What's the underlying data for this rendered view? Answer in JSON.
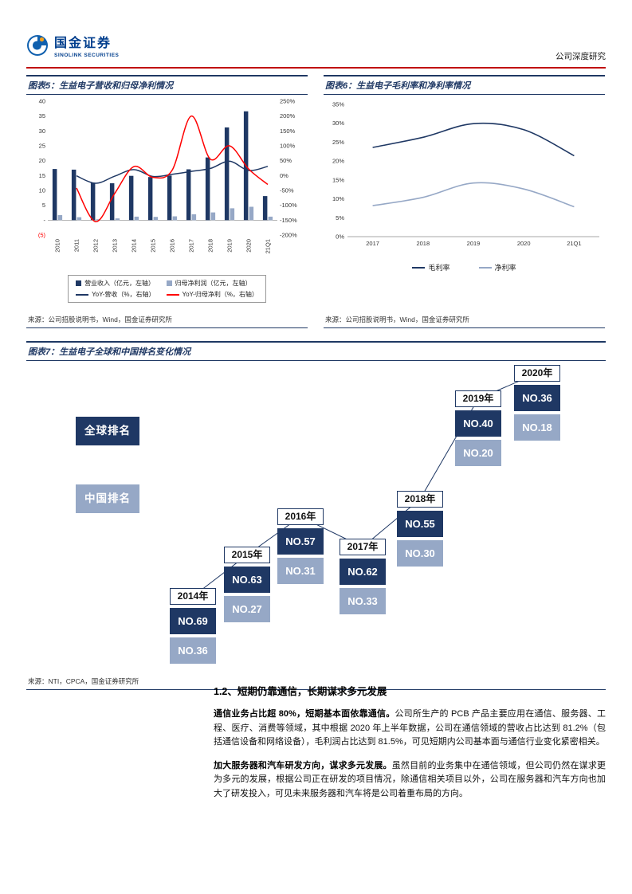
{
  "header": {
    "brand_cn": "国金证券",
    "brand_en": "SINOLINK SECURITIES",
    "report_type": "公司深度研究"
  },
  "figures": {
    "fig5": {
      "title": "图表5：生益电子营收和归母净利情况",
      "source": "来源：公司招股说明书，Wind，国金证券研究所"
    },
    "fig6": {
      "title": "图表6：生益电子毛利率和净利率情况",
      "source": "来源：公司招股说明书，Wind，国金证券研究所"
    },
    "fig7": {
      "title": "图表7：生益电子全球和中国排名变化情况",
      "source": "来源：NTI，CPCA，国金证券研究所"
    }
  },
  "section": {
    "heading": "1.2、短期仍靠通信，长期谋求多元发展",
    "paragraphs": [
      {
        "lead": "通信业务占比超 80%，短期基本面依靠通信。",
        "text": "公司所生产的 PCB 产品主要应用在通信、服务器、工程、医疗、消费等领域，其中根据 2020 年上半年数据，公司在通信领域的营收占比达到 81.2%（包括通信设备和网络设备），毛利润占比达到 81.5%，可见短期内公司基本面与通信行业变化紧密相关。"
      },
      {
        "lead": "加大服务器和汽车研发方向，谋求多元发展。",
        "text": "虽然目前的业务集中在通信领域，但公司仍然在谋求更为多元的发展，根据公司正在研发的项目情况，除通信相关项目以外，公司在服务器和汽车方向也加大了研发投入，可见未来服务器和汽车将是公司着重布局的方向。"
      }
    ]
  },
  "colors": {
    "navy": "#1F3864",
    "light_blue": "#96A8C6",
    "red_line": "#FF0000",
    "rule_red": "#C00000"
  },
  "chart_data": [
    {
      "id": "fig5",
      "type": "bar",
      "title": "生益电子营收和归母净利情况",
      "categories": [
        "2010",
        "2011",
        "2012",
        "2013",
        "2014",
        "2015",
        "2016",
        "2017",
        "2018",
        "2019",
        "2020",
        "21Q1"
      ],
      "bar_series": [
        {
          "name": "营业收入（亿元，左轴）",
          "axis": "left",
          "color": "#1F3864",
          "values": [
            17.2,
            17.0,
            12.6,
            12.4,
            14.9,
            14.5,
            15.0,
            17.1,
            21.1,
            31.2,
            36.6,
            8.1
          ]
        },
        {
          "name": "归母净利润（亿元，左轴）",
          "axis": "left",
          "color": "#96A8C6",
          "values": [
            1.7,
            1.0,
            0.3,
            0.6,
            1.2,
            1.1,
            1.3,
            2.0,
            2.6,
            4.0,
            4.5,
            1.2
          ]
        }
      ],
      "line_series": [
        {
          "name": "YoY-营收（%，右轴）",
          "axis": "right",
          "color": "#1F3864",
          "values": [
            null,
            -1,
            -26,
            -2,
            20,
            -3,
            4,
            14,
            24,
            48,
            17,
            31
          ]
        },
        {
          "name": "YoY-归母净利（%，右轴）",
          "axis": "right",
          "color": "#FF0000",
          "values": [
            null,
            -42,
            -155,
            -60,
            30,
            -6,
            18,
            200,
            55,
            100,
            22,
            -30
          ]
        }
      ],
      "left_axis": {
        "min": -5,
        "max": 40,
        "step": 5,
        "labels": [
          "40",
          "35",
          "30",
          "25",
          "20",
          "15",
          "10",
          "5",
          "-",
          "(5)"
        ]
      },
      "right_axis": {
        "min": -200,
        "max": 250,
        "step": 50,
        "labels": [
          "250%",
          "200%",
          "150%",
          "100%",
          "50%",
          "0%",
          "-50%",
          "-100%",
          "-150%",
          "-200%"
        ]
      }
    },
    {
      "id": "fig6",
      "type": "line",
      "title": "生益电子毛利率和净利率情况",
      "categories": [
        "2017",
        "2018",
        "2019",
        "2020",
        "21Q1"
      ],
      "series": [
        {
          "name": "毛利率",
          "color": "#1F3864",
          "values": [
            23.6,
            26.3,
            29.9,
            28.3,
            21.4
          ]
        },
        {
          "name": "净利率",
          "color": "#96A8C6",
          "values": [
            8.2,
            10.4,
            14.2,
            12.6,
            7.9
          ]
        }
      ],
      "y_axis": {
        "min": 0,
        "max": 35,
        "step": 5,
        "unit": "%"
      },
      "legend_position": "bottom",
      "grid": false
    },
    {
      "id": "fig7",
      "type": "table",
      "title": "生益电子全球和中国排名变化情况",
      "row_labels": [
        "全球排名",
        "中国排名"
      ],
      "years": [
        "2014年",
        "2015年",
        "2016年",
        "2017年",
        "2018年",
        "2019年",
        "2020年"
      ],
      "global_rank": [
        "NO.69",
        "NO.63",
        "NO.57",
        "NO.62",
        "NO.55",
        "NO.40",
        "NO.36"
      ],
      "china_rank": [
        "NO.36",
        "NO.27",
        "NO.31",
        "NO.33",
        "NO.30",
        "NO.20",
        "NO.18"
      ]
    }
  ]
}
